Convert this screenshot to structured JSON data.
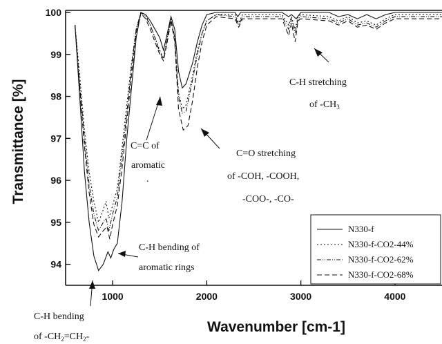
{
  "chart_data": {
    "type": "line",
    "xlabel": "Wavenumber [cm-1]",
    "ylabel": "Transmittance [%]",
    "xlim": [
      500,
      4500
    ],
    "ylim": [
      93.5,
      100.05
    ],
    "x_ticks": [
      "1000",
      "2000",
      "3000",
      "4000"
    ],
    "y_ticks": [
      "94",
      "95",
      "96",
      "97",
      "98",
      "99",
      "100"
    ],
    "grid": false,
    "legend_position": "bottom-right",
    "series": [
      {
        "name": "N330-f",
        "dash": "",
        "points": [
          [
            600,
            99.7
          ],
          [
            650,
            98.0
          ],
          [
            700,
            96.2
          ],
          [
            750,
            95.0
          ],
          [
            800,
            94.2
          ],
          [
            850,
            93.85
          ],
          [
            900,
            94.0
          ],
          [
            950,
            94.3
          ],
          [
            980,
            94.15
          ],
          [
            1010,
            94.35
          ],
          [
            1050,
            94.5
          ],
          [
            1100,
            95.5
          ],
          [
            1150,
            97.0
          ],
          [
            1200,
            98.2
          ],
          [
            1250,
            99.4
          ],
          [
            1300,
            100.0
          ],
          [
            1350,
            99.95
          ],
          [
            1400,
            99.8
          ],
          [
            1450,
            99.6
          ],
          [
            1500,
            99.4
          ],
          [
            1540,
            99.1
          ],
          [
            1580,
            99.5
          ],
          [
            1620,
            99.9
          ],
          [
            1660,
            99.6
          ],
          [
            1700,
            98.6
          ],
          [
            1740,
            98.2
          ],
          [
            1780,
            98.3
          ],
          [
            1850,
            98.8
          ],
          [
            1900,
            99.3
          ],
          [
            1950,
            99.7
          ],
          [
            2000,
            99.95
          ],
          [
            2100,
            100
          ],
          [
            2300,
            100
          ],
          [
            2330,
            99.9
          ],
          [
            2360,
            100
          ],
          [
            2800,
            100
          ],
          [
            2870,
            99.9
          ],
          [
            2900,
            99.95
          ],
          [
            2950,
            99.85
          ],
          [
            3000,
            100
          ],
          [
            3300,
            100
          ],
          [
            3400,
            99.9
          ],
          [
            3500,
            99.95
          ],
          [
            3600,
            99.85
          ],
          [
            3700,
            99.95
          ],
          [
            3800,
            99.85
          ],
          [
            3900,
            99.95
          ],
          [
            4000,
            100
          ],
          [
            4500,
            100
          ]
        ]
      },
      {
        "name": "N330-f-CO2-44%",
        "dash": "2,3",
        "points": [
          [
            600,
            99.7
          ],
          [
            650,
            98.5
          ],
          [
            700,
            97.2
          ],
          [
            750,
            96.2
          ],
          [
            800,
            95.5
          ],
          [
            850,
            95.0
          ],
          [
            900,
            95.3
          ],
          [
            930,
            95.5
          ],
          [
            960,
            95.1
          ],
          [
            1000,
            95.4
          ],
          [
            1050,
            95.8
          ],
          [
            1100,
            96.8
          ],
          [
            1150,
            97.8
          ],
          [
            1200,
            98.8
          ],
          [
            1250,
            99.6
          ],
          [
            1300,
            100.0
          ],
          [
            1350,
            99.95
          ],
          [
            1400,
            99.7
          ],
          [
            1450,
            99.4
          ],
          [
            1500,
            99.1
          ],
          [
            1540,
            98.9
          ],
          [
            1580,
            99.4
          ],
          [
            1620,
            99.8
          ],
          [
            1660,
            99.4
          ],
          [
            1700,
            98.1
          ],
          [
            1740,
            97.7
          ],
          [
            1780,
            97.8
          ],
          [
            1850,
            98.5
          ],
          [
            1900,
            99.1
          ],
          [
            1950,
            99.5
          ],
          [
            2000,
            99.8
          ],
          [
            2100,
            99.95
          ],
          [
            2300,
            99.95
          ],
          [
            2340,
            99.75
          ],
          [
            2380,
            99.95
          ],
          [
            2800,
            99.95
          ],
          [
            2870,
            99.7
          ],
          [
            2900,
            99.9
          ],
          [
            2940,
            99.6
          ],
          [
            2970,
            99.9
          ],
          [
            3000,
            99.95
          ],
          [
            3300,
            99.9
          ],
          [
            3400,
            99.8
          ],
          [
            3500,
            99.9
          ],
          [
            3600,
            99.75
          ],
          [
            3700,
            99.8
          ],
          [
            3800,
            99.7
          ],
          [
            3900,
            99.85
          ],
          [
            4000,
            99.95
          ],
          [
            4500,
            99.95
          ]
        ]
      },
      {
        "name": "N330-f-CO2-62%",
        "dash": "6,2,1,2,1,2",
        "points": [
          [
            600,
            99.7
          ],
          [
            650,
            98.3
          ],
          [
            700,
            97.0
          ],
          [
            750,
            95.9
          ],
          [
            800,
            95.2
          ],
          [
            850,
            94.8
          ],
          [
            900,
            95.0
          ],
          [
            930,
            95.1
          ],
          [
            960,
            94.8
          ],
          [
            1000,
            95.2
          ],
          [
            1050,
            95.6
          ],
          [
            1100,
            96.6
          ],
          [
            1150,
            97.6
          ],
          [
            1200,
            98.7
          ],
          [
            1250,
            99.6
          ],
          [
            1300,
            100.0
          ],
          [
            1350,
            99.9
          ],
          [
            1400,
            99.7
          ],
          [
            1450,
            99.4
          ],
          [
            1500,
            99.05
          ],
          [
            1540,
            98.9
          ],
          [
            1580,
            99.4
          ],
          [
            1620,
            99.85
          ],
          [
            1660,
            99.4
          ],
          [
            1700,
            98.0
          ],
          [
            1740,
            97.6
          ],
          [
            1780,
            97.65
          ],
          [
            1850,
            98.4
          ],
          [
            1900,
            99.0
          ],
          [
            1950,
            99.5
          ],
          [
            2000,
            99.8
          ],
          [
            2100,
            99.95
          ],
          [
            2300,
            99.9
          ],
          [
            2340,
            99.7
          ],
          [
            2380,
            99.9
          ],
          [
            2800,
            99.9
          ],
          [
            2870,
            99.6
          ],
          [
            2900,
            99.85
          ],
          [
            2940,
            99.5
          ],
          [
            2970,
            99.85
          ],
          [
            3000,
            99.9
          ],
          [
            3300,
            99.85
          ],
          [
            3400,
            99.75
          ],
          [
            3500,
            99.85
          ],
          [
            3600,
            99.7
          ],
          [
            3700,
            99.75
          ],
          [
            3800,
            99.65
          ],
          [
            3900,
            99.8
          ],
          [
            4000,
            99.9
          ],
          [
            4500,
            99.9
          ]
        ]
      },
      {
        "name": "N330-f-CO2-68%",
        "dash": "7,4",
        "points": [
          [
            600,
            99.7
          ],
          [
            650,
            98.2
          ],
          [
            700,
            96.8
          ],
          [
            750,
            95.7
          ],
          [
            800,
            94.95
          ],
          [
            850,
            94.65
          ],
          [
            900,
            94.8
          ],
          [
            940,
            94.9
          ],
          [
            970,
            94.6
          ],
          [
            1000,
            94.95
          ],
          [
            1050,
            95.4
          ],
          [
            1100,
            96.3
          ],
          [
            1150,
            97.4
          ],
          [
            1200,
            98.5
          ],
          [
            1250,
            99.5
          ],
          [
            1300,
            99.98
          ],
          [
            1350,
            99.85
          ],
          [
            1400,
            99.6
          ],
          [
            1450,
            99.3
          ],
          [
            1500,
            99.0
          ],
          [
            1540,
            98.85
          ],
          [
            1580,
            99.3
          ],
          [
            1620,
            99.8
          ],
          [
            1660,
            99.3
          ],
          [
            1700,
            97.7
          ],
          [
            1750,
            97.2
          ],
          [
            1800,
            97.3
          ],
          [
            1850,
            97.9
          ],
          [
            1900,
            98.7
          ],
          [
            1950,
            99.3
          ],
          [
            2000,
            99.7
          ],
          [
            2100,
            99.9
          ],
          [
            2300,
            99.85
          ],
          [
            2340,
            99.65
          ],
          [
            2380,
            99.85
          ],
          [
            2800,
            99.85
          ],
          [
            2870,
            99.45
          ],
          [
            2900,
            99.75
          ],
          [
            2940,
            99.3
          ],
          [
            2970,
            99.8
          ],
          [
            3000,
            99.85
          ],
          [
            3300,
            99.8
          ],
          [
            3400,
            99.7
          ],
          [
            3500,
            99.8
          ],
          [
            3600,
            99.65
          ],
          [
            3700,
            99.7
          ],
          [
            3800,
            99.6
          ],
          [
            3900,
            99.75
          ],
          [
            4000,
            99.85
          ],
          [
            4500,
            99.85
          ]
        ]
      }
    ],
    "annotations": [
      {
        "id": "cc",
        "line1": "C=C of",
        "line2": "aromatic",
        "dot": "."
      },
      {
        "id": "co",
        "line1": "C=O stretching",
        "line2": "of -COH, -COOH,",
        "line3": "-COO-, -CO-"
      },
      {
        "id": "ch3",
        "line1": "C-H stretching",
        "line2_pre": "of -CH",
        "line2_sub": "3"
      },
      {
        "id": "arom",
        "line1": "C-H bending of",
        "line2": "aromatic rings"
      },
      {
        "id": "ch2",
        "line1": "C-H bending",
        "line2_a": "of -CH",
        "line2_b": "2",
        "line2_c": "=CH",
        "line2_d": "2",
        "line2_e": "-"
      }
    ]
  }
}
